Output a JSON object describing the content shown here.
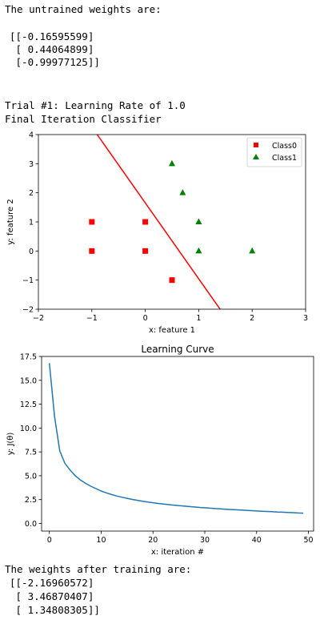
{
  "output": {
    "untrained_heading": "The untrained weights are:",
    "untrained_weights": [
      "[[-0.16595599]",
      " [ 0.44064899]",
      " [-0.99977125]]"
    ],
    "trial_heading": "Trial #1: Learning Rate of 1.0",
    "classifier_heading": "Final Iteration Classifier",
    "trained_heading": "The weights after training are:",
    "trained_weights": [
      "[[-2.16960572]",
      " [ 3.46870407]",
      " [ 1.34808305]]"
    ]
  },
  "chart_data": [
    {
      "type": "scatter",
      "title": "",
      "xlabel": "x: feature 1",
      "ylabel": "y: feature 2",
      "xlim": [
        -2,
        3
      ],
      "ylim": [
        -2,
        4
      ],
      "xticks": [
        -2,
        -1,
        0,
        1,
        2,
        3
      ],
      "yticks": [
        -2,
        -1,
        0,
        1,
        2,
        3,
        4
      ],
      "legend_position": "top-right",
      "series": [
        {
          "name": "Class0",
          "marker": "square",
          "color": "#ff0000",
          "points": [
            [
              -1,
              1
            ],
            [
              -1,
              0
            ],
            [
              0,
              1
            ],
            [
              0,
              0
            ],
            [
              0.5,
              -1
            ]
          ]
        },
        {
          "name": "Class1",
          "marker": "triangle",
          "color": "#008000",
          "points": [
            [
              0.5,
              3
            ],
            [
              0.7,
              2
            ],
            [
              1,
              1
            ],
            [
              1,
              0
            ],
            [
              2,
              0
            ]
          ]
        }
      ],
      "decision_line": {
        "color": "#ff0000",
        "points": [
          [
            -0.9,
            4
          ],
          [
            1.4,
            -2
          ]
        ]
      }
    },
    {
      "type": "line",
      "title": "Learning Curve",
      "xlabel": "x: iteration #",
      "ylabel": "y: J(θ)",
      "xlim": [
        -1.5,
        51
      ],
      "ylim": [
        -0.8,
        17.5
      ],
      "xticks": [
        0,
        10,
        20,
        30,
        40,
        50
      ],
      "yticks": [
        0.0,
        2.5,
        5.0,
        7.5,
        10.0,
        12.5,
        15.0,
        17.5
      ],
      "ytick_labels": [
        "0.0",
        "2.5",
        "5.0",
        "7.5",
        "10.0",
        "12.5",
        "15.0",
        "17.5"
      ],
      "color": "#1f77b4",
      "x": [
        0,
        1,
        2,
        3,
        4,
        5,
        6,
        7,
        8,
        9,
        10,
        11,
        12,
        13,
        14,
        15,
        16,
        17,
        18,
        19,
        20,
        21,
        22,
        23,
        24,
        25,
        26,
        27,
        28,
        29,
        30,
        31,
        32,
        33,
        34,
        35,
        36,
        37,
        38,
        39,
        40,
        41,
        42,
        43,
        44,
        45,
        46,
        47,
        48,
        49
      ],
      "values": [
        16.8,
        11.2,
        7.6,
        6.3,
        5.6,
        5.0,
        4.55,
        4.2,
        3.9,
        3.65,
        3.4,
        3.2,
        3.03,
        2.88,
        2.75,
        2.63,
        2.52,
        2.42,
        2.33,
        2.25,
        2.17,
        2.1,
        2.04,
        1.98,
        1.92,
        1.87,
        1.82,
        1.77,
        1.73,
        1.68,
        1.64,
        1.6,
        1.56,
        1.53,
        1.49,
        1.46,
        1.43,
        1.4,
        1.37,
        1.34,
        1.31,
        1.28,
        1.26,
        1.23,
        1.2,
        1.18,
        1.15,
        1.13,
        1.1,
        1.08
      ]
    }
  ]
}
